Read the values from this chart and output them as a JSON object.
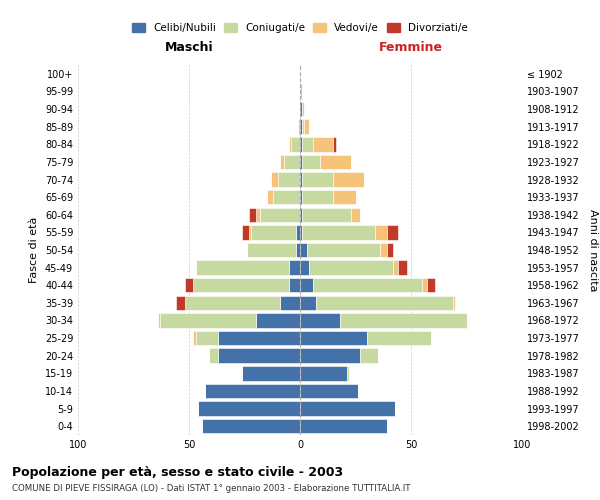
{
  "age_groups": [
    "0-4",
    "5-9",
    "10-14",
    "15-19",
    "20-24",
    "25-29",
    "30-34",
    "35-39",
    "40-44",
    "45-49",
    "50-54",
    "55-59",
    "60-64",
    "65-69",
    "70-74",
    "75-79",
    "80-84",
    "85-89",
    "90-94",
    "95-99",
    "100+"
  ],
  "birth_years": [
    "1998-2002",
    "1993-1997",
    "1988-1992",
    "1983-1987",
    "1978-1982",
    "1973-1977",
    "1968-1972",
    "1963-1967",
    "1958-1962",
    "1953-1957",
    "1948-1952",
    "1943-1947",
    "1938-1942",
    "1933-1937",
    "1928-1932",
    "1923-1927",
    "1918-1922",
    "1913-1917",
    "1908-1912",
    "1903-1907",
    "≤ 1902"
  ],
  "colors": {
    "celibi": "#4472a8",
    "coniugati": "#c5d9a0",
    "vedovi": "#f5c47a",
    "divorziati": "#c0392b"
  },
  "maschi": {
    "celibi": [
      44,
      46,
      43,
      26,
      37,
      37,
      20,
      9,
      5,
      5,
      2,
      2,
      0,
      0,
      0,
      0,
      0,
      0,
      0,
      0,
      0
    ],
    "coniugati": [
      0,
      0,
      0,
      0,
      4,
      10,
      43,
      43,
      43,
      42,
      22,
      20,
      18,
      12,
      10,
      7,
      4,
      1,
      0,
      0,
      0
    ],
    "vedovi": [
      0,
      0,
      0,
      0,
      0,
      1,
      1,
      0,
      0,
      0,
      0,
      1,
      2,
      3,
      3,
      2,
      1,
      0,
      0,
      0,
      0
    ],
    "divorziati": [
      0,
      0,
      0,
      0,
      0,
      0,
      0,
      4,
      4,
      0,
      0,
      3,
      3,
      0,
      0,
      0,
      0,
      0,
      0,
      0,
      0
    ]
  },
  "femmine": {
    "celibi": [
      39,
      43,
      26,
      21,
      27,
      30,
      18,
      7,
      6,
      4,
      3,
      1,
      1,
      1,
      1,
      1,
      1,
      1,
      1,
      0,
      0
    ],
    "coniugati": [
      0,
      0,
      0,
      1,
      8,
      29,
      57,
      62,
      49,
      38,
      33,
      33,
      22,
      14,
      14,
      8,
      5,
      1,
      0,
      0,
      0
    ],
    "vedovi": [
      0,
      0,
      0,
      0,
      0,
      0,
      0,
      1,
      2,
      2,
      3,
      5,
      4,
      10,
      14,
      14,
      9,
      2,
      1,
      1,
      0
    ],
    "divorziati": [
      0,
      0,
      0,
      0,
      0,
      0,
      0,
      0,
      4,
      4,
      3,
      5,
      0,
      0,
      0,
      0,
      1,
      0,
      0,
      0,
      0
    ]
  },
  "xlim": 100,
  "title": "Popolazione per età, sesso e stato civile - 2003",
  "subtitle": "COMUNE DI PIEVE FISSIRAGA (LO) - Dati ISTAT 1° gennaio 2003 - Elaborazione TUTTITALIA.IT",
  "xlabel_left": "Maschi",
  "xlabel_right": "Femmine",
  "ylabel_left": "Fasce di età",
  "ylabel_right": "Anni di nascita",
  "legend_labels": [
    "Celibi/Nubili",
    "Coniugati/e",
    "Vedovi/e",
    "Divorziati/e"
  ],
  "background_color": "#ffffff",
  "grid_color": "#cccccc"
}
